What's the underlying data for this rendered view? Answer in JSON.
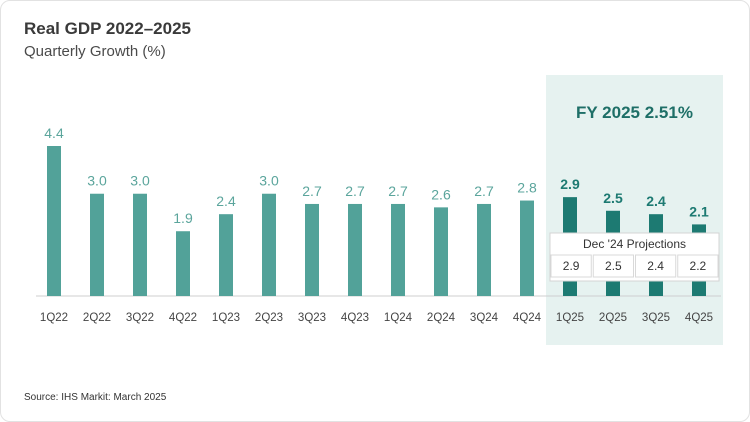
{
  "header": {
    "title": "Real GDP 2022–2025",
    "subtitle": "Quarterly Growth (%)"
  },
  "source": "Source: IHS Markit: March 2025",
  "chart_data": {
    "type": "bar",
    "title": "Real GDP 2022–2025",
    "subtitle": "Quarterly Growth (%)",
    "xlabel": "",
    "ylabel": "",
    "ylim": [
      0,
      4.4
    ],
    "grid": false,
    "categories": [
      "1Q22",
      "2Q22",
      "3Q22",
      "4Q22",
      "1Q23",
      "2Q23",
      "3Q23",
      "4Q23",
      "1Q24",
      "2Q24",
      "3Q24",
      "4Q24",
      "1Q25",
      "2Q25",
      "3Q25",
      "4Q25"
    ],
    "values": [
      4.4,
      3.0,
      3.0,
      1.9,
      2.4,
      3.0,
      2.7,
      2.7,
      2.7,
      2.6,
      2.7,
      2.8,
      2.9,
      2.5,
      2.4,
      2.1
    ],
    "value_labels": [
      "4.4",
      "3.0",
      "3.0",
      "1.9",
      "2.4",
      "3.0",
      "2.7",
      "2.7",
      "2.7",
      "2.6",
      "2.7",
      "2.8",
      "2.9",
      "2.5",
      "2.4",
      "2.1"
    ],
    "highlight_categories": [
      "1Q25",
      "2Q25",
      "3Q25",
      "4Q25"
    ],
    "annotation": "FY 2025 2.51%",
    "projections": {
      "title": "Dec '24 Projections",
      "values": [
        "2.9",
        "2.5",
        "2.4",
        "2.2"
      ]
    },
    "colors": {
      "bar": "#52a299",
      "bar_highlight": "#1d7a72",
      "label": "#5ba59c",
      "label_highlight": "#1d7a72",
      "panel": "#e6f2f0"
    }
  }
}
